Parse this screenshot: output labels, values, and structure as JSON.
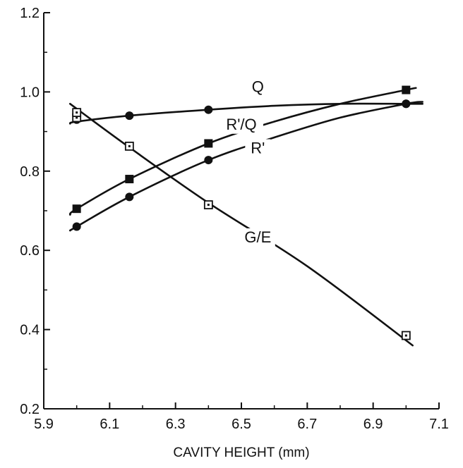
{
  "chart_data": {
    "type": "line",
    "title": "",
    "xlabel": "CAVITY HEIGHT (mm)",
    "ylabel": "",
    "xlim": [
      5.9,
      7.1
    ],
    "ylim": [
      0.2,
      1.2
    ],
    "xticks": [
      "5.9",
      "6.1",
      "6.3",
      "6.5",
      "6.7",
      "6.9",
      "7.1"
    ],
    "yticks": [
      "0.2",
      "0.4",
      "0.6",
      "0.8",
      "1.0",
      "1.2"
    ],
    "grid": false,
    "legend": "none (series labeled directly on curves)",
    "colors": {
      "line": "#111111",
      "axis": "#111111",
      "background": "#ffffff"
    },
    "series": [
      {
        "name": "Q",
        "marker": "filled-circle",
        "x": [
          6.0,
          6.16,
          6.4,
          7.0
        ],
        "y": [
          0.93,
          0.94,
          0.955,
          0.97
        ],
        "curve_x": [
          5.98,
          6.0,
          6.16,
          6.4,
          6.6,
          6.8,
          7.0,
          7.05
        ],
        "curve_y": [
          0.92,
          0.925,
          0.94,
          0.955,
          0.965,
          0.97,
          0.97,
          0.97
        ]
      },
      {
        "name": "R'/Q",
        "marker": "filled-square",
        "x": [
          6.0,
          6.16,
          6.4,
          7.0
        ],
        "y": [
          0.705,
          0.78,
          0.87,
          1.005
        ],
        "curve_x": [
          5.98,
          6.0,
          6.16,
          6.4,
          6.6,
          6.8,
          7.0,
          7.03
        ],
        "curve_y": [
          0.69,
          0.705,
          0.78,
          0.87,
          0.925,
          0.97,
          1.005,
          1.01
        ]
      },
      {
        "name": "R'",
        "marker": "filled-circle",
        "x": [
          6.0,
          6.16,
          6.4,
          7.0
        ],
        "y": [
          0.66,
          0.735,
          0.828,
          0.97
        ],
        "curve_x": [
          5.98,
          6.0,
          6.16,
          6.4,
          6.6,
          6.8,
          7.0,
          7.05
        ],
        "curve_y": [
          0.65,
          0.66,
          0.735,
          0.828,
          0.885,
          0.935,
          0.97,
          0.975
        ]
      },
      {
        "name": "G/E",
        "marker": "open-square",
        "x": [
          6.0,
          6.0,
          6.16,
          6.4,
          7.0
        ],
        "y": [
          0.935,
          0.948,
          0.863,
          0.715,
          0.385
        ],
        "curve_x": [
          5.98,
          6.16,
          6.4,
          6.7,
          7.02
        ],
        "curve_y": [
          0.97,
          0.86,
          0.72,
          0.56,
          0.36
        ]
      }
    ]
  }
}
